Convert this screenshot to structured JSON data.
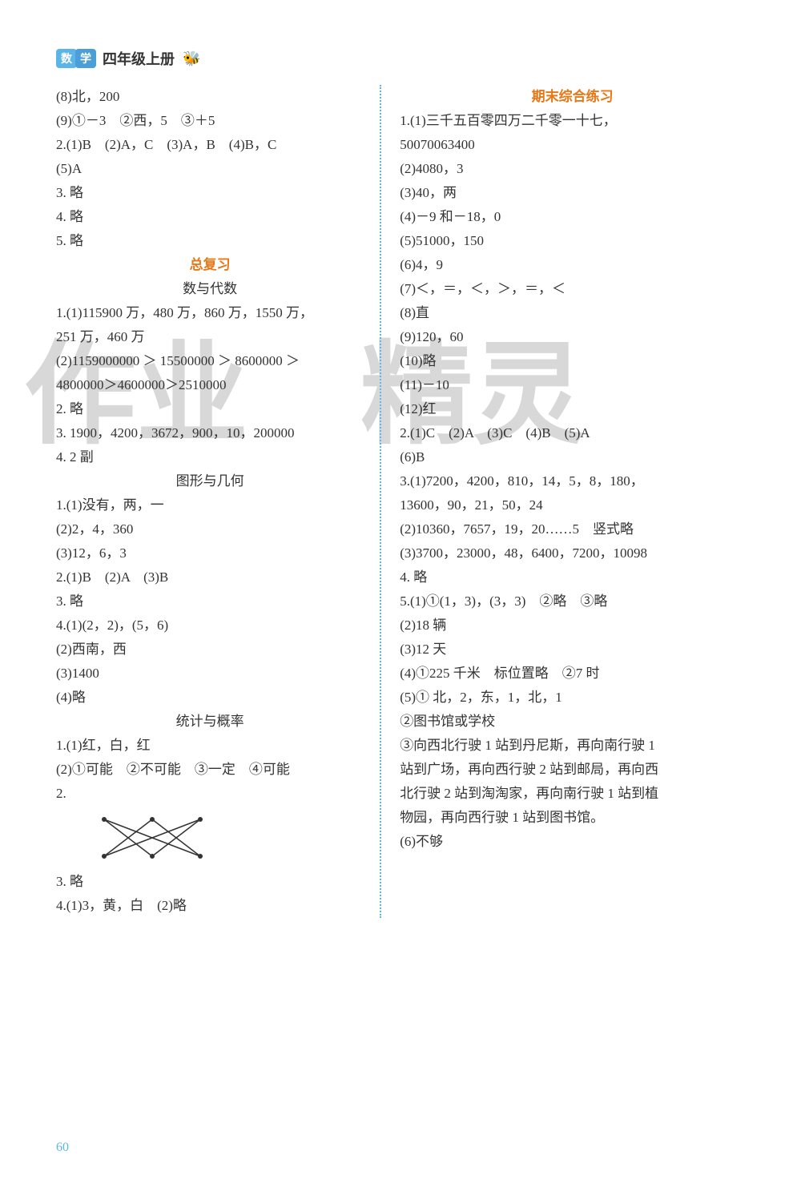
{
  "header": {
    "badge1": "数",
    "badge2": "学",
    "title": "四年级上册",
    "bee": "🐝"
  },
  "left": {
    "lines1": [
      "(8)北，200",
      "(9)①－3　②西，5　③＋5",
      "2.(1)B　(2)A，C　(3)A，B　(4)B，C",
      "(5)A",
      "3. 略",
      "4. 略",
      "5. 略"
    ],
    "section1_title": "总复习",
    "sub1": "数与代数",
    "lines2": [
      "1.(1)115900 万，480 万，860 万，1550 万，",
      "251 万，460 万",
      "(2)1159000000 ＞ 15500000 ＞ 8600000 ＞",
      "4800000＞4600000＞2510000",
      "2. 略",
      "3. 1900，4200，3672，900，10，200000",
      "4. 2 副"
    ],
    "sub2": "图形与几何",
    "lines3": [
      "1.(1)没有，两，一",
      "(2)2，4，360",
      "(3)12，6，3",
      "2.(1)B　(2)A　(3)B",
      "3. 略",
      "4.(1)(2，2)，(5，6)",
      "(2)西南，西",
      "(3)1400",
      "(4)略"
    ],
    "sub3": "统计与概率",
    "lines4": [
      "1.(1)红，白，红",
      "(2)①可能　②不可能　③一定　④可能",
      "2."
    ],
    "lines5": [
      "3. 略",
      "4.(1)3，黄，白　(2)略"
    ]
  },
  "right": {
    "section_title": "期末综合练习",
    "lines": [
      "1.(1)三千五百零四万二千零一十七，",
      "50070063400",
      "(2)4080，3",
      "(3)40，两",
      "(4)－9 和－18，0",
      "(5)51000，150",
      "(6)4，9",
      "(7)＜，＝，＜，＞，＝，＜",
      "(8)直",
      "(9)120，60",
      "(10)略",
      "(11)－10",
      "(12)红",
      "2.(1)C　(2)A　(3)C　(4)B　(5)A",
      "(6)B",
      "3.(1)7200，4200，810，14，5，8，180，",
      "13600，90，21，50，24",
      "(2)10360，7657，19，20……5　竖式略",
      "(3)3700，23000，48，6400，7200，10098",
      "4. 略",
      "5.(1)①(1，3)，(3，3)　②略　③略",
      "(2)18 辆",
      "(3)12 天",
      "(4)①225 千米　标位置略　②7 时",
      "(5)① 北，2，东，1，北，1",
      "②图书馆或学校",
      "③向西北行驶 1 站到丹尼斯，再向南行驶 1",
      "站到广场，再向西行驶 2 站到邮局，再向西",
      "北行驶 2 站到淘淘家，再向南行驶 1 站到植",
      "物园，再向西行驶 1 站到图书馆。",
      "(6)不够"
    ]
  },
  "diagram": {
    "top_dots": [
      30,
      90,
      150
    ],
    "bottom_dots": [
      30,
      90,
      150
    ],
    "dot_radius": 3,
    "stroke": "#333",
    "edges": [
      [
        0,
        1
      ],
      [
        0,
        2
      ],
      [
        1,
        0
      ],
      [
        1,
        2
      ],
      [
        2,
        0
      ],
      [
        2,
        1
      ]
    ]
  },
  "page_num": "60",
  "colors": {
    "accent": "#5bb5e8",
    "orange": "#e67817",
    "text": "#333333",
    "bg": "#ffffff",
    "watermark": "#d8d8d8"
  }
}
